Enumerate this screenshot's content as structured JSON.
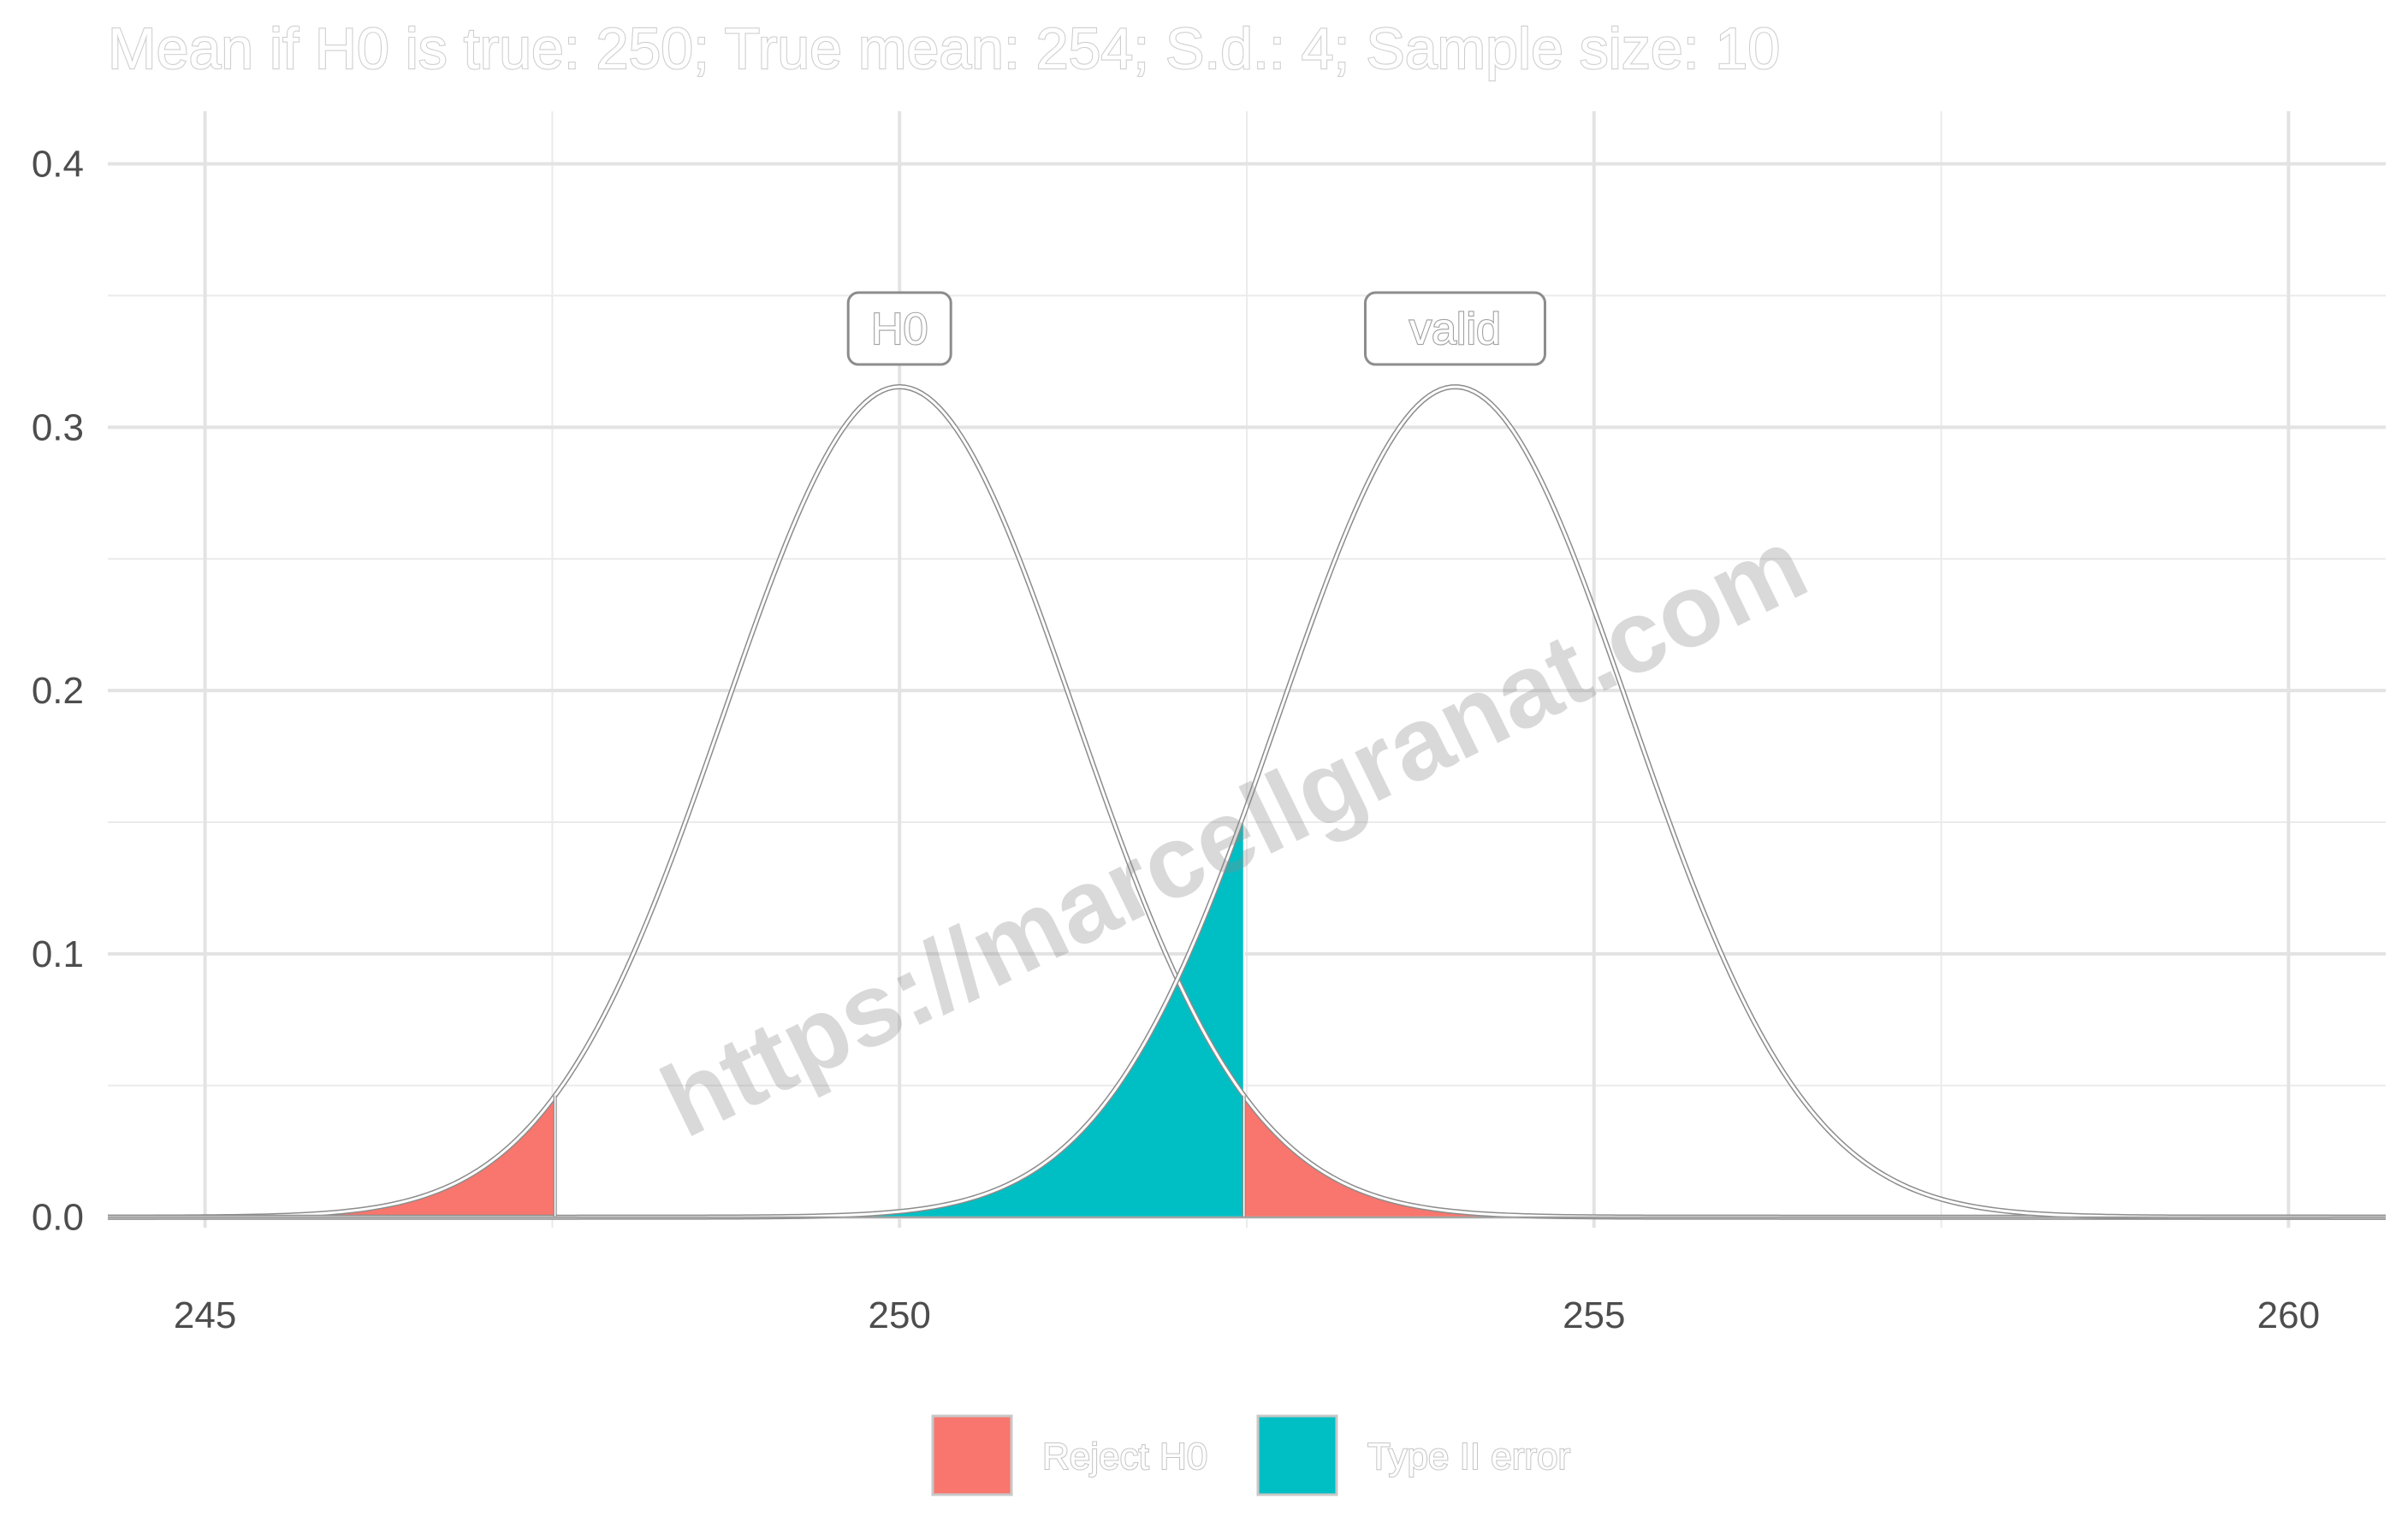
{
  "chart_data": {
    "type": "area",
    "title": "Mean if H0 is true: 250; True mean: 254; S.d.: 4; Sample size: 10",
    "xlabel": "",
    "ylabel": "",
    "xlim": [
      244.3,
      260.7
    ],
    "ylim": [
      -0.004,
      0.42
    ],
    "x_ticks": [
      245,
      250,
      255,
      260
    ],
    "x_tick_labels": [
      "245",
      "250",
      "255",
      "260"
    ],
    "y_ticks": [
      0.0,
      0.1,
      0.2,
      0.3,
      0.4
    ],
    "y_tick_labels": [
      "0.0",
      "0.1",
      "0.2",
      "0.3",
      "0.4"
    ],
    "grid": true,
    "legend_position": "bottom",
    "distributions": [
      {
        "label": "H0",
        "mean": 250,
        "sd": 1.265
      },
      {
        "label": "valid",
        "mean": 254,
        "sd": 1.265
      }
    ],
    "critical_values": [
      247.52,
      252.48
    ],
    "shaded_regions": [
      {
        "legend": "Reject H0",
        "distribution": "H0",
        "from": 244.3,
        "to": 247.52,
        "color": "#F8766D"
      },
      {
        "legend": "Reject H0",
        "distribution": "H0",
        "from": 252.48,
        "to": 260.7,
        "color": "#F8766D"
      },
      {
        "legend": "Type II error",
        "distribution": "valid",
        "from": 244.3,
        "to": 252.48,
        "color": "#00BFC4"
      }
    ],
    "legend": [
      {
        "label": "Reject H0",
        "color": "#F8766D"
      },
      {
        "label": "Type II error",
        "color": "#00BFC4"
      }
    ],
    "watermark": "https://marcellgranat.com"
  }
}
